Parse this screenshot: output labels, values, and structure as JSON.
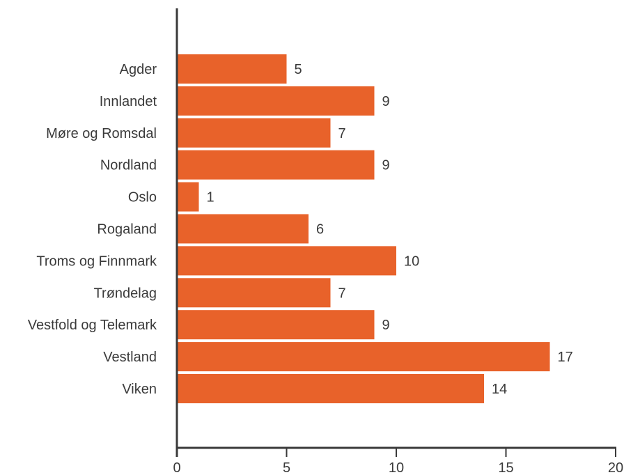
{
  "chart_data": {
    "type": "bar",
    "orientation": "horizontal",
    "categories": [
      "Agder",
      "Innlandet",
      "Møre og Romsdal",
      "Nordland",
      "Oslo",
      "Rogaland",
      "Troms og Finnmark",
      "Trøndelag",
      "Vestfold og Telemark",
      "Vestland",
      "Viken"
    ],
    "values": [
      5,
      9,
      7,
      9,
      1,
      6,
      10,
      7,
      9,
      17,
      14
    ],
    "data_labels": [
      "5",
      "9",
      "7",
      "9",
      "1",
      "6",
      "10",
      "7",
      "9",
      "17",
      "14"
    ],
    "x_ticks": [
      "0",
      "5",
      "10",
      "15",
      "20"
    ],
    "x_tick_values": [
      0,
      5,
      10,
      15,
      20
    ],
    "xlim": [
      0,
      20
    ],
    "title": "",
    "xlabel": "",
    "ylabel": "",
    "grid": false,
    "legend": "none",
    "colors": {
      "bar": "#E8622A",
      "axis": "#3a3a3a",
      "text": "#3a3a3a"
    }
  }
}
